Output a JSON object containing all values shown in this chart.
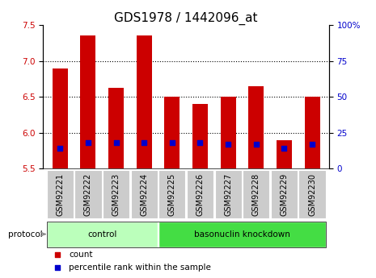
{
  "title": "GDS1978 / 1442096_at",
  "samples": [
    "GSM92221",
    "GSM92222",
    "GSM92223",
    "GSM92224",
    "GSM92225",
    "GSM92226",
    "GSM92227",
    "GSM92228",
    "GSM92229",
    "GSM92230"
  ],
  "count_values": [
    6.9,
    7.35,
    6.62,
    7.35,
    6.5,
    6.4,
    6.5,
    6.65,
    5.9,
    6.5
  ],
  "percentile_values": [
    14,
    18,
    18,
    18,
    18,
    18,
    17,
    17,
    14,
    17
  ],
  "ylim_left": [
    5.5,
    7.5
  ],
  "ylim_right": [
    0,
    100
  ],
  "yticks_left": [
    5.5,
    6.0,
    6.5,
    7.0,
    7.5
  ],
  "yticks_right": [
    0,
    25,
    50,
    75,
    100
  ],
  "ytick_labels_right": [
    "0",
    "25",
    "50",
    "75",
    "100%"
  ],
  "bar_color": "#cc0000",
  "dot_color": "#0000cc",
  "bar_width": 0.55,
  "groups": [
    {
      "label": "control",
      "start": 0,
      "end": 3,
      "color": "#bbffbb"
    },
    {
      "label": "basonuclin knockdown",
      "start": 4,
      "end": 9,
      "color": "#44dd44"
    }
  ],
  "protocol_label": "protocol",
  "legend_items": [
    {
      "label": "count",
      "color": "#cc0000"
    },
    {
      "label": "percentile rank within the sample",
      "color": "#0000cc"
    }
  ],
  "grid_yticks": [
    6.0,
    6.5,
    7.0
  ],
  "title_fontsize": 11,
  "tick_fontsize": 7.5,
  "label_fontsize": 8.5
}
